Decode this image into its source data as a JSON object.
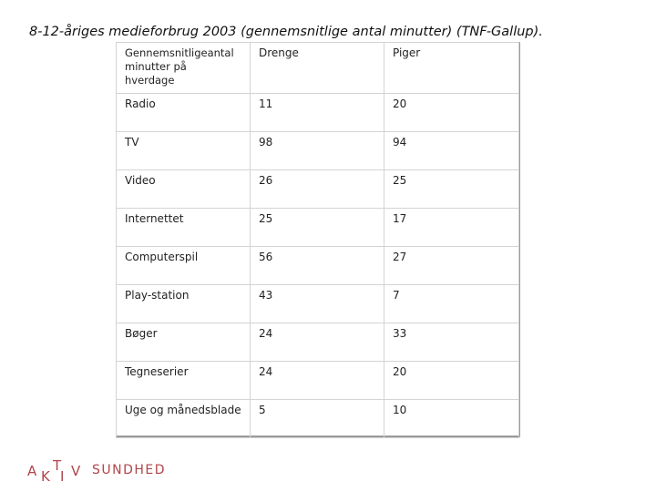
{
  "title": "8-12-åriges medieforbrug 2003 (gennemsnitlige antal minutter) (TNF-Gallup).",
  "table": {
    "header_first_lines": [
      "Gennemsnitligeantal",
      "minutter på",
      "hverdage"
    ],
    "header_cols": [
      "Drenge",
      "Piger"
    ],
    "rows": [
      {
        "label": "Radio",
        "drenge": "11",
        "piger": "20"
      },
      {
        "label": "TV",
        "drenge": "98",
        "piger": "94"
      },
      {
        "label": "Video",
        "drenge": "26",
        "piger": "25"
      },
      {
        "label": "Internettet",
        "drenge": "25",
        "piger": "17"
      },
      {
        "label": "Computerspil",
        "drenge": "56",
        "piger": "27"
      },
      {
        "label": "Play-station",
        "drenge": "43",
        "piger": "7"
      },
      {
        "label": "Bøger",
        "drenge": "24",
        "piger": "33"
      },
      {
        "label": "Tegneserier",
        "drenge": "24",
        "piger": "20"
      },
      {
        "label": "Uge og månedsblade",
        "drenge": "5",
        "piger": "10"
      }
    ]
  },
  "footer": {
    "logo_letters": [
      "A",
      "K",
      "T",
      "I",
      "V"
    ],
    "logo_word": "SUNDHED",
    "brand_color": "#b0464a"
  }
}
